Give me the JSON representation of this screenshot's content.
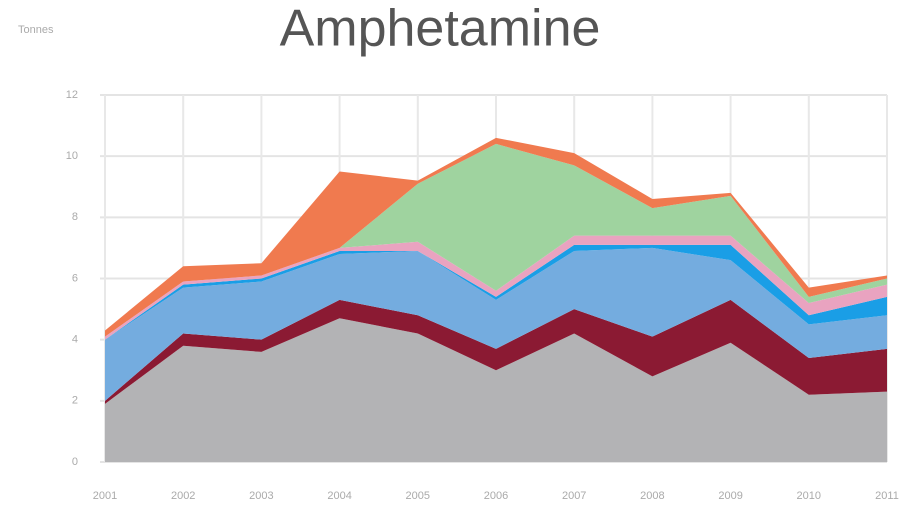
{
  "chart_data": {
    "type": "stacked_area",
    "title": "Amphetamine",
    "y_label": "Tonnes",
    "categories": [
      "2001",
      "2002",
      "2003",
      "2004",
      "2005",
      "2006",
      "2007",
      "2008",
      "2009",
      "2010",
      "2011"
    ],
    "series": [
      {
        "color": "#b3b3b5",
        "values": [
          1.9,
          3.8,
          3.6,
          4.7,
          4.2,
          3.0,
          4.2,
          2.8,
          3.9,
          2.2,
          2.3
        ]
      },
      {
        "color": "#8b1a33",
        "values": [
          0.1,
          0.4,
          0.4,
          0.6,
          0.6,
          0.7,
          0.8,
          1.3,
          1.4,
          1.2,
          1.4
        ]
      },
      {
        "color": "#74acdf",
        "values": [
          2.0,
          1.5,
          1.9,
          1.5,
          2.1,
          1.6,
          1.9,
          2.9,
          1.3,
          1.1,
          1.1
        ]
      },
      {
        "color": "#1a9ee6",
        "values": [
          0,
          0.1,
          0.1,
          0.1,
          0,
          0.1,
          0.2,
          0.1,
          0.5,
          0.3,
          0.6
        ]
      },
      {
        "color": "#e9a3c0",
        "values": [
          0.1,
          0.1,
          0.1,
          0.1,
          0.3,
          0.2,
          0.3,
          0.3,
          0.3,
          0.4,
          0.4
        ]
      },
      {
        "color": "#9fd39f",
        "values": [
          0,
          0,
          0,
          0,
          1.9,
          4.8,
          2.3,
          0.9,
          1.3,
          0.2,
          0.2
        ]
      },
      {
        "color": "#f07a4f",
        "values": [
          0.2,
          0.5,
          0.4,
          2.5,
          0.1,
          0.2,
          0.4,
          0.3,
          0.1,
          0.3,
          0.1
        ]
      }
    ],
    "ylim": [
      0,
      12
    ],
    "yticks": [
      0,
      2,
      4,
      6,
      8,
      10,
      12
    ],
    "grid": true
  }
}
